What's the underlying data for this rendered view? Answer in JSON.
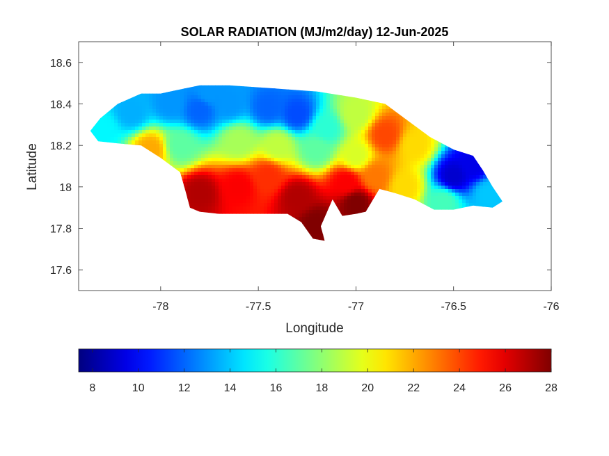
{
  "chart_data": {
    "type": "heatmap",
    "title": "SOLAR RADIATION (MJ/m2/day) 12-Jun-2025",
    "xlabel": "Longitude",
    "ylabel": "Latitude",
    "xlim": [
      -78.42,
      -76
    ],
    "ylim": [
      17.5,
      18.7
    ],
    "xticks": [
      -78,
      -77.5,
      -77,
      -76.5,
      -76
    ],
    "xtick_labels": [
      "-78",
      "-77.5",
      "-77",
      "-76.5",
      "-76"
    ],
    "yticks": [
      17.6,
      17.8,
      18,
      18.2,
      18.4,
      18.6
    ],
    "ytick_labels": [
      "17.6",
      "17.8",
      "18",
      "18.2",
      "18.4",
      "18.6"
    ],
    "colormap": "jet",
    "colorbar": {
      "orientation": "horizontal",
      "range": [
        7.4,
        28
      ],
      "ticks": [
        8,
        10,
        12,
        14,
        16,
        18,
        20,
        22,
        24,
        26,
        28
      ],
      "tick_labels": [
        "8",
        "10",
        "12",
        "14",
        "16",
        "18",
        "20",
        "22",
        "24",
        "26",
        "28"
      ]
    },
    "grid": false,
    "outline": [
      [
        -78.36,
        18.27
      ],
      [
        -78.31,
        18.33
      ],
      [
        -78.22,
        18.4
      ],
      [
        -78.1,
        18.45
      ],
      [
        -78.0,
        18.45
      ],
      [
        -77.9,
        18.47
      ],
      [
        -77.8,
        18.49
      ],
      [
        -77.65,
        18.49
      ],
      [
        -77.5,
        18.48
      ],
      [
        -77.35,
        18.47
      ],
      [
        -77.2,
        18.46
      ],
      [
        -77.0,
        18.43
      ],
      [
        -76.85,
        18.4
      ],
      [
        -76.75,
        18.33
      ],
      [
        -76.62,
        18.24
      ],
      [
        -76.5,
        18.18
      ],
      [
        -76.4,
        18.15
      ],
      [
        -76.35,
        18.08
      ],
      [
        -76.3,
        18.0
      ],
      [
        -76.25,
        17.93
      ],
      [
        -76.3,
        17.9
      ],
      [
        -76.4,
        17.91
      ],
      [
        -76.5,
        17.89
      ],
      [
        -76.6,
        17.89
      ],
      [
        -76.7,
        17.94
      ],
      [
        -76.8,
        17.97
      ],
      [
        -76.88,
        17.99
      ],
      [
        -76.95,
        17.88
      ],
      [
        -77.0,
        17.87
      ],
      [
        -77.07,
        17.86
      ],
      [
        -77.12,
        17.94
      ],
      [
        -77.18,
        17.81
      ],
      [
        -77.16,
        17.74
      ],
      [
        -77.22,
        17.75
      ],
      [
        -77.28,
        17.83
      ],
      [
        -77.35,
        17.87
      ],
      [
        -77.5,
        17.87
      ],
      [
        -77.7,
        17.87
      ],
      [
        -77.8,
        17.88
      ],
      [
        -77.85,
        17.9
      ],
      [
        -77.87,
        17.97
      ],
      [
        -77.9,
        18.07
      ],
      [
        -78.0,
        18.14
      ],
      [
        -78.1,
        18.2
      ],
      [
        -78.22,
        18.21
      ],
      [
        -78.32,
        18.22
      ],
      [
        -78.36,
        18.27
      ]
    ],
    "field_samples": [
      {
        "lon": -78.3,
        "lat": 18.28,
        "value": 15.0
      },
      {
        "lon": -78.15,
        "lat": 18.36,
        "value": 13.5
      },
      {
        "lon": -77.95,
        "lat": 18.4,
        "value": 13.0
      },
      {
        "lon": -77.8,
        "lat": 18.37,
        "value": 12.0
      },
      {
        "lon": -77.75,
        "lat": 18.45,
        "value": 13.0
      },
      {
        "lon": -77.65,
        "lat": 18.4,
        "value": 13.0
      },
      {
        "lon": -77.45,
        "lat": 18.38,
        "value": 12.0
      },
      {
        "lon": -77.3,
        "lat": 18.35,
        "value": 11.5
      },
      {
        "lon": -77.15,
        "lat": 18.28,
        "value": 16.0
      },
      {
        "lon": -77.0,
        "lat": 18.35,
        "value": 19.0
      },
      {
        "lon": -76.85,
        "lat": 18.25,
        "value": 24.0
      },
      {
        "lon": -76.7,
        "lat": 18.2,
        "value": 21.0
      },
      {
        "lon": -76.5,
        "lat": 18.05,
        "value": 9.0
      },
      {
        "lon": -76.4,
        "lat": 18.1,
        "value": 9.5
      },
      {
        "lon": -76.32,
        "lat": 17.97,
        "value": 14.0
      },
      {
        "lon": -76.55,
        "lat": 17.93,
        "value": 16.5
      },
      {
        "lon": -76.75,
        "lat": 18.0,
        "value": 21.0
      },
      {
        "lon": -78.05,
        "lat": 18.18,
        "value": 22.0
      },
      {
        "lon": -77.9,
        "lat": 18.2,
        "value": 17.0
      },
      {
        "lon": -77.6,
        "lat": 18.22,
        "value": 18.5
      },
      {
        "lon": -77.4,
        "lat": 18.2,
        "value": 19.0
      },
      {
        "lon": -77.2,
        "lat": 18.18,
        "value": 17.0
      },
      {
        "lon": -77.0,
        "lat": 18.15,
        "value": 19.5
      },
      {
        "lon": -77.8,
        "lat": 17.97,
        "value": 27.0
      },
      {
        "lon": -77.6,
        "lat": 18.0,
        "value": 25.5
      },
      {
        "lon": -77.45,
        "lat": 18.05,
        "value": 24.5
      },
      {
        "lon": -77.3,
        "lat": 17.95,
        "value": 27.0
      },
      {
        "lon": -77.2,
        "lat": 17.82,
        "value": 28.0
      },
      {
        "lon": -77.0,
        "lat": 17.92,
        "value": 28.0
      },
      {
        "lon": -77.05,
        "lat": 18.02,
        "value": 25.5
      },
      {
        "lon": -76.9,
        "lat": 18.05,
        "value": 23.0
      }
    ]
  }
}
